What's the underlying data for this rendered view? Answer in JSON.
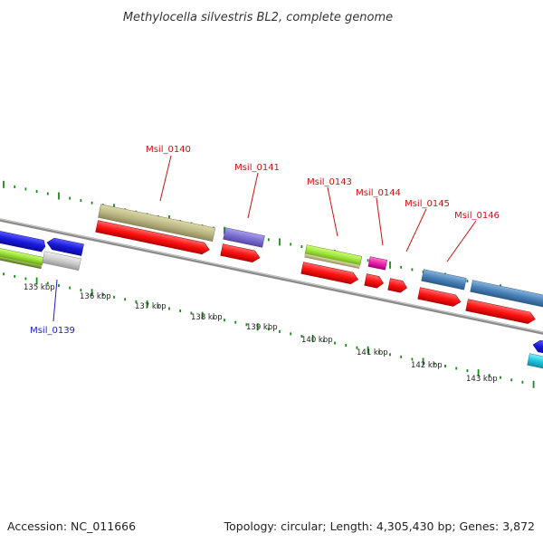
{
  "title": "Methylocella silvestris BL2, complete genome",
  "footer": {
    "accession": "Accession: NC_011666",
    "summary": "Topology: circular; Length: 4,305,430 bp; Genes: 3,872"
  },
  "kbp_labels": [
    "135 kbp",
    "136 kbp",
    "137 kbp",
    "138 kbp",
    "139 kbp",
    "140 kbp",
    "141 kbp",
    "142 kbp",
    "143 kbp"
  ],
  "gene_labels": [
    {
      "text": "Msil_0139",
      "color": "#1a1acc"
    },
    {
      "text": "Msil_0140",
      "color": "#cc1111"
    },
    {
      "text": "Msil_0141",
      "color": "#cc1111"
    },
    {
      "text": "Msil_0143",
      "color": "#cc1111"
    },
    {
      "text": "Msil_0144",
      "color": "#cc1111"
    },
    {
      "text": "Msil_0145",
      "color": "#cc1111"
    },
    {
      "text": "Msil_0146",
      "color": "#cc1111"
    }
  ],
  "colors": {
    "cds": "#ff1111",
    "tick": "#1a8c1a",
    "backbone": "#8a8a8a",
    "khaki": "#bdb986",
    "slate_purple": "#7a6fd0",
    "lime": "#9ee23a",
    "magenta": "#ee22aa",
    "steel_blue": "#4a82b8",
    "blue": "#1a1add",
    "gray": "#cccccc",
    "cyan": "#22c6dd",
    "olive": "#7a9a3a"
  }
}
